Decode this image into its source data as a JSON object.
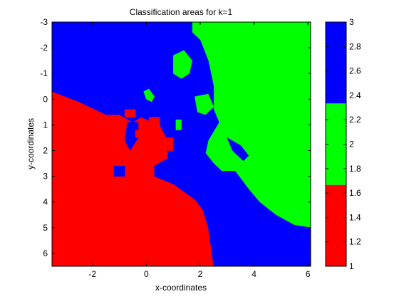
{
  "chart_data": {
    "type": "heatmap",
    "title": "Classification areas for k=1",
    "xlabel": "x-coordinates",
    "ylabel": "y-coordinates",
    "xlim": [
      -3.5,
      6.1
    ],
    "ylim": [
      -3.0,
      6.5
    ],
    "y_axis_reversed": true,
    "x_ticks": [
      -2,
      0,
      2,
      4,
      6
    ],
    "x_tick_labels": [
      "-2",
      "0",
      "2",
      "4",
      "6"
    ],
    "y_ticks": [
      -3,
      -2,
      -1,
      0,
      1,
      2,
      3,
      4,
      5,
      6
    ],
    "y_tick_labels": [
      "-3",
      "-2",
      "-1",
      "0",
      "1",
      "2",
      "3",
      "4",
      "5",
      "6"
    ],
    "colorbar": {
      "range": [
        1,
        3
      ],
      "ticks": [
        1,
        1.2,
        1.4,
        1.6,
        1.8,
        2,
        2.2,
        2.4,
        2.6,
        2.8,
        3
      ],
      "tick_labels": [
        "1",
        "1.2",
        "1.4",
        "1.6",
        "1.8",
        "2",
        "2.2",
        "2.4",
        "2.6",
        "2.8",
        "3"
      ],
      "segments": [
        {
          "class": 1,
          "color": "#ff0000",
          "from": 1.0,
          "to": 1.6667
        },
        {
          "class": 2,
          "color": "#00ff00",
          "from": 1.6667,
          "to": 2.3333
        },
        {
          "class": 3,
          "color": "#0000ff",
          "from": 2.3333,
          "to": 3.0
        }
      ]
    },
    "regions": [
      {
        "name": "red-region",
        "class": 1,
        "color": "#ff0000",
        "polygon": [
          [
            -3.5,
            -0.3
          ],
          [
            -2.5,
            0.1
          ],
          [
            -1.5,
            0.6
          ],
          [
            -1.0,
            0.6
          ],
          [
            -0.5,
            0.9
          ],
          [
            -0.2,
            0.7
          ],
          [
            0.5,
            1.0
          ],
          [
            0.8,
            1.6
          ],
          [
            0.8,
            2.3
          ],
          [
            0.3,
            2.6
          ],
          [
            0.3,
            3.0
          ],
          [
            1.0,
            3.3
          ],
          [
            1.8,
            3.9
          ],
          [
            2.1,
            4.3
          ],
          [
            2.3,
            5.0
          ],
          [
            2.5,
            6.5
          ],
          [
            -3.5,
            6.5
          ]
        ]
      },
      {
        "name": "green-region",
        "class": 2,
        "color": "#00ff00",
        "polygon": [
          [
            1.7,
            -3.0
          ],
          [
            6.1,
            -3.0
          ],
          [
            6.1,
            5.0
          ],
          [
            5.5,
            4.9
          ],
          [
            4.8,
            4.5
          ],
          [
            4.2,
            4.0
          ],
          [
            3.8,
            3.5
          ],
          [
            3.3,
            2.8
          ],
          [
            2.8,
            2.8
          ],
          [
            2.5,
            2.5
          ],
          [
            2.2,
            2.1
          ],
          [
            2.3,
            1.6
          ],
          [
            2.7,
            0.9
          ],
          [
            2.5,
            0.4
          ],
          [
            2.5,
            -0.5
          ],
          [
            2.3,
            -1.5
          ],
          [
            2.0,
            -2.3
          ],
          [
            1.7,
            -2.6
          ]
        ]
      },
      {
        "name": "blue-region",
        "class": 3,
        "color": "#0000ff",
        "polygon": [
          [
            -3.5,
            -3.0
          ],
          [
            1.7,
            -3.0
          ],
          [
            1.7,
            -2.6
          ],
          [
            2.0,
            -2.3
          ],
          [
            2.3,
            -1.5
          ],
          [
            2.5,
            -0.5
          ],
          [
            2.5,
            0.4
          ],
          [
            2.7,
            0.9
          ],
          [
            2.3,
            1.6
          ],
          [
            2.2,
            2.1
          ],
          [
            2.5,
            2.5
          ],
          [
            2.8,
            2.8
          ],
          [
            3.3,
            2.8
          ],
          [
            3.8,
            3.5
          ],
          [
            4.2,
            4.0
          ],
          [
            4.8,
            4.5
          ],
          [
            5.5,
            4.9
          ],
          [
            6.1,
            5.0
          ],
          [
            6.1,
            6.5
          ],
          [
            2.5,
            6.5
          ],
          [
            2.3,
            5.0
          ],
          [
            2.1,
            4.3
          ],
          [
            1.8,
            3.9
          ],
          [
            1.0,
            3.3
          ],
          [
            0.3,
            3.0
          ],
          [
            0.3,
            2.6
          ],
          [
            0.8,
            2.3
          ],
          [
            0.8,
            1.6
          ],
          [
            0.5,
            1.0
          ],
          [
            -0.2,
            0.7
          ],
          [
            -0.5,
            0.9
          ],
          [
            -1.0,
            0.6
          ],
          [
            -1.5,
            0.6
          ],
          [
            -2.5,
            0.1
          ],
          [
            -3.5,
            -0.3
          ]
        ]
      }
    ],
    "islands": [
      {
        "name": "green-island-upper",
        "class": 2,
        "color": "#00ff00",
        "polygon": [
          [
            1.0,
            -1.7
          ],
          [
            1.4,
            -1.9
          ],
          [
            1.7,
            -1.5
          ],
          [
            1.6,
            -1.0
          ],
          [
            1.3,
            -0.8
          ],
          [
            1.0,
            -1.0
          ]
        ]
      },
      {
        "name": "green-island-left",
        "class": 2,
        "color": "#00ff00",
        "polygon": [
          [
            -0.1,
            -0.3
          ],
          [
            0.1,
            -0.4
          ],
          [
            0.3,
            -0.1
          ],
          [
            0.2,
            0.1
          ],
          [
            0.0,
            0.0
          ]
        ]
      },
      {
        "name": "green-island-mid",
        "class": 2,
        "color": "#00ff00",
        "polygon": [
          [
            1.8,
            -0.1
          ],
          [
            2.3,
            -0.2
          ],
          [
            2.5,
            0.3
          ],
          [
            2.2,
            0.6
          ],
          [
            1.9,
            0.5
          ]
        ]
      },
      {
        "name": "green-island-small",
        "class": 2,
        "color": "#00ff00",
        "polygon": [
          [
            1.1,
            0.8
          ],
          [
            1.3,
            0.8
          ],
          [
            1.3,
            1.2
          ],
          [
            1.1,
            1.2
          ]
        ]
      },
      {
        "name": "blue-island-right",
        "class": 3,
        "color": "#0000ff",
        "polygon": [
          [
            3.0,
            1.5
          ],
          [
            3.5,
            1.8
          ],
          [
            3.8,
            2.2
          ],
          [
            3.6,
            2.4
          ],
          [
            3.2,
            2.0
          ]
        ]
      },
      {
        "name": "blue-island-in-red-1",
        "class": 3,
        "color": "#0000ff",
        "polygon": [
          [
            -0.7,
            0.9
          ],
          [
            -0.3,
            0.9
          ],
          [
            -0.3,
            1.5
          ],
          [
            -0.6,
            2.0
          ],
          [
            -0.8,
            1.6
          ]
        ]
      },
      {
        "name": "blue-island-in-red-2",
        "class": 3,
        "color": "#0000ff",
        "polygon": [
          [
            -1.2,
            2.6
          ],
          [
            -0.8,
            2.6
          ],
          [
            -0.8,
            3.0
          ],
          [
            -1.2,
            3.0
          ]
        ]
      },
      {
        "name": "red-island-1",
        "class": 1,
        "color": "#ff0000",
        "polygon": [
          [
            -0.8,
            0.4
          ],
          [
            -0.4,
            0.4
          ],
          [
            -0.4,
            0.7
          ],
          [
            -0.8,
            0.7
          ]
        ]
      },
      {
        "name": "red-island-2",
        "class": 1,
        "color": "#ff0000",
        "polygon": [
          [
            0.1,
            0.7
          ],
          [
            0.5,
            0.7
          ],
          [
            0.5,
            1.1
          ],
          [
            0.1,
            1.1
          ]
        ]
      },
      {
        "name": "red-island-3",
        "class": 1,
        "color": "#ff0000",
        "polygon": [
          [
            0.7,
            1.5
          ],
          [
            1.0,
            1.5
          ],
          [
            1.0,
            2.0
          ],
          [
            0.7,
            2.0
          ]
        ]
      },
      {
        "name": "red-island-4",
        "class": 1,
        "color": "#ff0000",
        "polygon": [
          [
            -0.4,
            1.2
          ],
          [
            0.0,
            1.2
          ],
          [
            0.0,
            1.5
          ],
          [
            -0.4,
            1.5
          ]
        ]
      }
    ]
  }
}
